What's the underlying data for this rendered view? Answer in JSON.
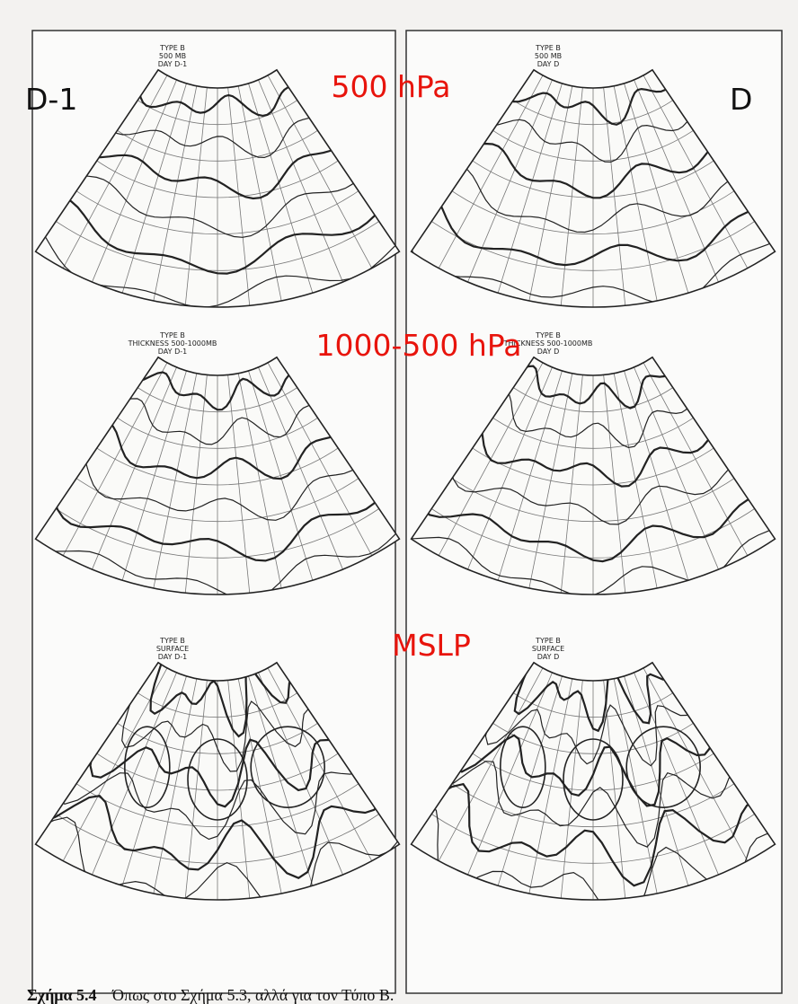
{
  "labels": {
    "left_column": "D-1",
    "right_column": "D",
    "row1": "500 hPa",
    "row2": "1000-500 hPa",
    "row3": "MSLP"
  },
  "maps": [
    {
      "lines": [
        "TYPE B",
        "500 MB",
        "DAY D-1"
      ]
    },
    {
      "lines": [
        "TYPE B",
        "500 MB",
        "DAY D"
      ]
    },
    {
      "lines": [
        "TYPE B",
        "THICKNESS 500-1000MB",
        "DAY D-1"
      ]
    },
    {
      "lines": [
        "TYPE B",
        "THICKNESS 500-1000MB",
        "DAY D"
      ]
    },
    {
      "lines": [
        "TYPE B",
        "SURFACE",
        "DAY D-1"
      ]
    },
    {
      "lines": [
        "TYPE B",
        "SURFACE",
        "DAY D"
      ]
    }
  ],
  "caption": {
    "number": "Σχήμα 5.4",
    "text": "Όπως στο Σχήμα 5.3, αλλά για τον Τύπο Β."
  }
}
